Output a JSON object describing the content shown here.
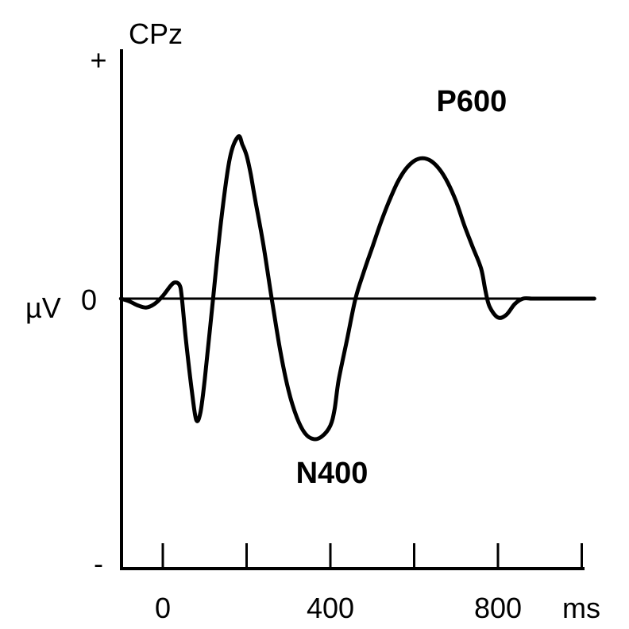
{
  "chart_data": {
    "type": "line",
    "title": "CPz",
    "xlabel": "ms",
    "ylabel": "µV",
    "xlim": [
      -100,
      1000
    ],
    "ylim": [
      -1,
      1
    ],
    "x_ticks": [
      0,
      200,
      400,
      600,
      800,
      1000
    ],
    "x_tick_labels": [
      {
        "value": 0,
        "label": "0"
      },
      {
        "value": 400,
        "label": "400"
      },
      {
        "value": 800,
        "label": "800"
      }
    ],
    "y_tick_labels": [
      {
        "value": 1,
        "label": "+"
      },
      {
        "value": 0,
        "label": "0"
      },
      {
        "value": -1,
        "label": "-"
      }
    ],
    "annotations": [
      {
        "label": "N400",
        "x": 400,
        "y": -0.52
      },
      {
        "label": "P600",
        "x": 760,
        "y": 0.62
      }
    ],
    "series": [
      {
        "x": [
          -100,
          -80,
          -60,
          -40,
          -20,
          0,
          20,
          30,
          40,
          45,
          55,
          70,
          80,
          90,
          100,
          120,
          140,
          160,
          180,
          190,
          200,
          210,
          220,
          240,
          260,
          280,
          300,
          320,
          340,
          360,
          380,
          400,
          410,
          420,
          440,
          460,
          480,
          500,
          520,
          540,
          560,
          580,
          600,
          620,
          640,
          660,
          680,
          700,
          720,
          740,
          760,
          770,
          780,
          800,
          820,
          840,
          860,
          880,
          900,
          920,
          940,
          960,
          980,
          1000,
          1020,
          1030
        ],
        "y": [
          0,
          -0.01,
          -0.025,
          -0.033,
          -0.02,
          0.01,
          0.05,
          0.06,
          0.05,
          0.01,
          -0.15,
          -0.35,
          -0.45,
          -0.42,
          -0.3,
          0.0,
          0.3,
          0.52,
          0.6,
          0.57,
          0.53,
          0.46,
          0.37,
          0.2,
          0.0,
          -0.19,
          -0.34,
          -0.44,
          -0.5,
          -0.52,
          -0.51,
          -0.47,
          -0.41,
          -0.3,
          -0.15,
          0.0,
          0.1,
          0.19,
          0.28,
          0.36,
          0.43,
          0.48,
          0.51,
          0.52,
          0.51,
          0.48,
          0.43,
          0.36,
          0.27,
          0.19,
          0.11,
          0.03,
          -0.03,
          -0.07,
          -0.06,
          -0.02,
          0.0,
          0.0,
          0.0,
          0.0,
          0.0,
          0.0,
          0.0,
          0.0,
          0.0,
          0.0
        ]
      }
    ],
    "zero_line": {
      "from": -100,
      "to": 1000
    },
    "grid": false,
    "legend": "none",
    "colors": {
      "line": "#000000",
      "axis": "#000000",
      "background": "#ffffff"
    }
  }
}
